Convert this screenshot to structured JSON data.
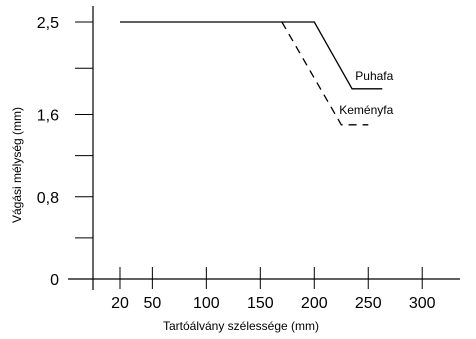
{
  "chart_data": {
    "type": "line",
    "xlabel": "Tartóálvány szélessége (mm)",
    "ylabel": "Vágási mélység (mm)",
    "x_ticks": [
      20,
      50,
      100,
      150,
      200,
      250,
      300
    ],
    "y_ticks": [
      {
        "value": 0,
        "label": "0"
      },
      {
        "value": 0.4,
        "label": ""
      },
      {
        "value": 0.8,
        "label": "0,8"
      },
      {
        "value": 1.2,
        "label": ""
      },
      {
        "value": 1.6,
        "label": "1,6"
      },
      {
        "value": 2.05,
        "label": ""
      },
      {
        "value": 2.5,
        "label": "2,5"
      }
    ],
    "xlim": [
      -5,
      335
    ],
    "ylim": [
      0,
      2.5
    ],
    "grid": false,
    "legend": "none",
    "series": [
      {
        "name": "Puhafa",
        "style": "solid",
        "color": "#000000",
        "points": [
          [
            20,
            2.5
          ],
          [
            200,
            2.5
          ],
          [
            235,
            1.85
          ],
          [
            263,
            1.85
          ]
        ]
      },
      {
        "name": "Keményfa",
        "style": "dashed",
        "color": "#000000",
        "points": [
          [
            170,
            2.5
          ],
          [
            225,
            1.5
          ],
          [
            250,
            1.5
          ]
        ]
      }
    ]
  }
}
